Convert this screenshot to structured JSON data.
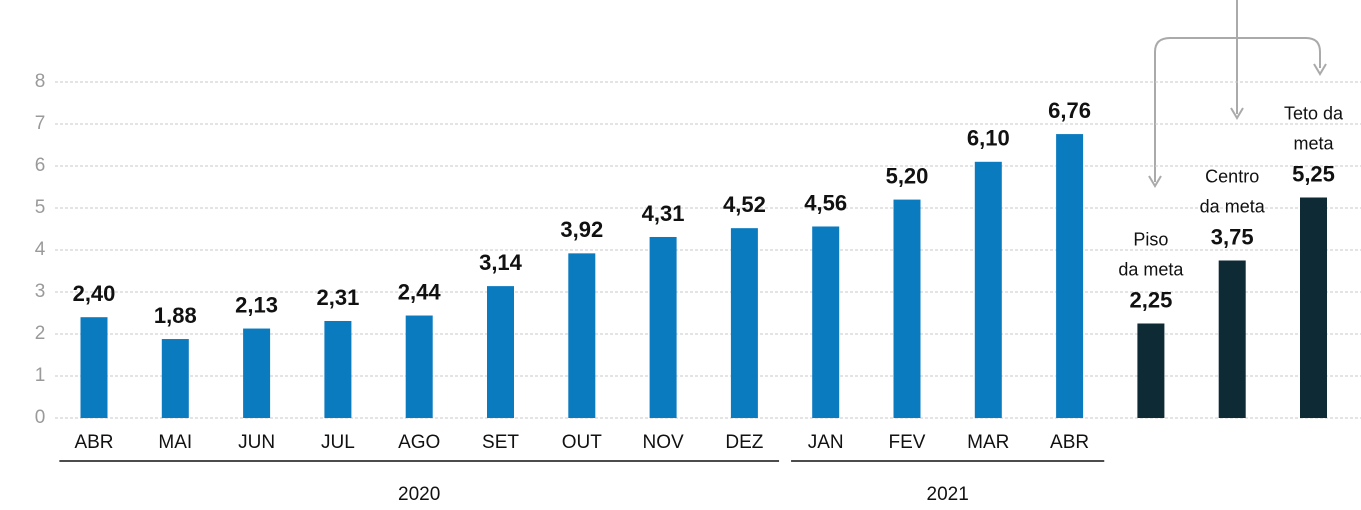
{
  "chart_data": {
    "type": "bar",
    "categories": [
      "ABR",
      "MAI",
      "JUN",
      "JUL",
      "AGO",
      "SET",
      "OUT",
      "NOV",
      "DEZ",
      "JAN",
      "FEV",
      "MAR",
      "ABR",
      null,
      null,
      null
    ],
    "values": [
      2.4,
      1.88,
      2.13,
      2.31,
      2.44,
      3.14,
      3.92,
      4.31,
      4.52,
      4.56,
      5.2,
      6.1,
      6.76,
      2.25,
      3.75,
      5.25
    ],
    "value_labels": [
      "2,40",
      "1,88",
      "2,13",
      "2,31",
      "2,44",
      "3,14",
      "3,92",
      "4,31",
      "4,52",
      "4,56",
      "5,20",
      "6,10",
      "6,76",
      "2,25",
      "3,75",
      "5,25"
    ],
    "colors": [
      "#0b7bc0",
      "#0b7bc0",
      "#0b7bc0",
      "#0b7bc0",
      "#0b7bc0",
      "#0b7bc0",
      "#0b7bc0",
      "#0b7bc0",
      "#0b7bc0",
      "#0b7bc0",
      "#0b7bc0",
      "#0b7bc0",
      "#0b7bc0",
      "#0d2a35",
      "#0d2a35",
      "#0d2a35"
    ],
    "annotations": [
      [
        "Piso",
        "da meta"
      ],
      [
        "Centro",
        "da meta"
      ],
      [
        "Teto da",
        "meta"
      ]
    ],
    "groups": [
      {
        "label": "2020",
        "count": 9
      },
      {
        "label": "2021",
        "count": 4
      }
    ],
    "ylim": [
      0,
      8
    ],
    "yticks": [
      0,
      1,
      2,
      3,
      4,
      5,
      6,
      7,
      8
    ],
    "grid": true
  }
}
